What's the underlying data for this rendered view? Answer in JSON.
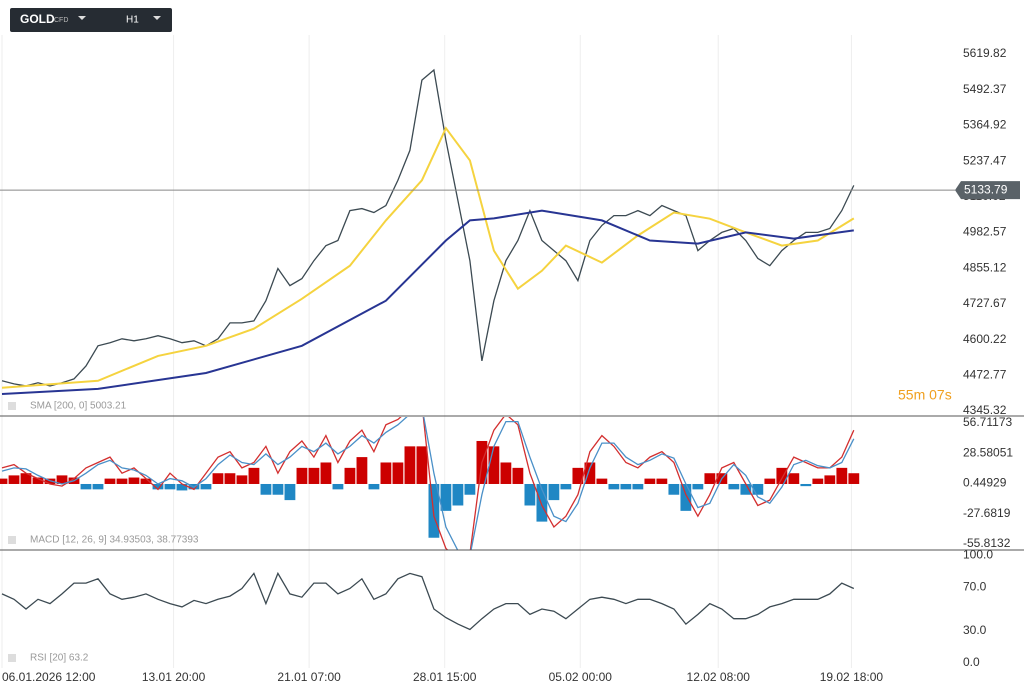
{
  "header": {
    "symbol": "GOLD",
    "instrument_type": "CFD",
    "timeframe": "H1"
  },
  "countdown": "55m 07s",
  "chart_data": [
    {
      "type": "line",
      "grid": true,
      "xlim": [
        0,
        78.6
      ],
      "ylim": [
        4327.4,
        5687.9
      ],
      "yticks": [
        5619.82,
        5492.37,
        5364.92,
        5237.47,
        5110.02,
        4982.57,
        4855.12,
        4727.67,
        4600.22,
        4472.77,
        4345.32
      ],
      "current_price": 5133.79,
      "series": [
        {
          "color": "#3c4a52",
          "x": [
            0,
            1,
            2,
            3,
            4,
            5,
            6,
            7,
            8,
            9,
            10,
            11,
            12,
            13,
            14,
            15,
            16,
            17,
            18,
            19,
            20,
            21,
            22,
            23,
            24,
            25,
            26,
            27,
            28,
            29,
            30,
            31,
            32,
            33,
            34,
            35,
            36,
            37,
            38,
            39,
            40,
            41,
            42,
            43,
            44,
            45,
            46,
            47,
            48,
            49,
            50,
            51,
            52,
            53,
            54,
            55,
            56,
            57,
            58,
            59,
            60,
            61,
            62,
            63,
            64,
            65,
            66,
            67,
            68,
            69,
            70,
            71
          ],
          "values": [
            4453,
            4442,
            4435,
            4446,
            4435,
            4446,
            4460,
            4506,
            4578,
            4589,
            4603,
            4596,
            4603,
            4614,
            4603,
            4589,
            4596,
            4578,
            4603,
            4660,
            4660,
            4667,
            4739,
            4854,
            4793,
            4818,
            4882,
            4936,
            4954,
            5061,
            5068,
            5054,
            5079,
            5169,
            5276,
            5527,
            5563,
            5312,
            5097,
            4882,
            4524,
            4739,
            4882,
            4954,
            5061,
            4954,
            4918,
            4882,
            4811,
            4954,
            5008,
            5043,
            5043,
            5061,
            5043,
            5079,
            5061,
            5043,
            4918,
            4954,
            4983,
            4997,
            4954,
            4890,
            4864,
            4918,
            4954,
            4983,
            4983,
            4997,
            5061,
            5151
          ]
        },
        {
          "color": "#f5d33f",
          "x": [
            0,
            8,
            13,
            17,
            21,
            25,
            29,
            32,
            35,
            37,
            39,
            41,
            43,
            45,
            47,
            50,
            53,
            56,
            59,
            62,
            65,
            68,
            71
          ],
          "values": [
            4428,
            4453,
            4542,
            4578,
            4639,
            4746,
            4864,
            5026,
            5169,
            5355,
            5240,
            4918,
            4782,
            4846,
            4936,
            4875,
            4972,
            5054,
            5032,
            4983,
            4936,
            4954,
            5033
          ]
        },
        {
          "name": "SMA [200, 0] 5003.21",
          "color": "#283593",
          "x": [
            0,
            8,
            17,
            25,
            32,
            37,
            39,
            41,
            45,
            50,
            54,
            58,
            62,
            66,
            71
          ],
          "values": [
            4406,
            4424,
            4481,
            4578,
            4739,
            4954,
            5026,
            5033,
            5061,
            5026,
            4954,
            4943,
            4983,
            4961,
            4990
          ]
        }
      ]
    },
    {
      "type": "combo",
      "title": "MACD [12, 26, 9] 34.93503, 38.77393",
      "grid": true,
      "xlim": [
        0,
        78.6
      ],
      "ylim": [
        -61.4,
        62.3
      ],
      "yticks": [
        56.71173,
        28.58051,
        0.44929,
        -27.6819,
        -55.8132
      ],
      "series": [
        {
          "style": "bar",
          "color": "#cc0000",
          "negative_color": "#1f87c4",
          "x": [
            0,
            1,
            2,
            3,
            4,
            5,
            6,
            7,
            8,
            9,
            10,
            11,
            12,
            13,
            14,
            15,
            16,
            17,
            18,
            19,
            20,
            21,
            22,
            23,
            24,
            25,
            26,
            27,
            28,
            29,
            30,
            31,
            32,
            33,
            34,
            35,
            36,
            37,
            38,
            39,
            40,
            41,
            42,
            43,
            44,
            45,
            46,
            47,
            48,
            49,
            50,
            51,
            52,
            53,
            54,
            55,
            56,
            57,
            58,
            59,
            60,
            61,
            62,
            63,
            64,
            65,
            66,
            67,
            68,
            69,
            70,
            71
          ],
          "values": [
            5,
            8,
            10,
            6,
            5,
            8,
            6,
            -5,
            -5,
            5,
            5,
            6,
            5,
            -5,
            -5,
            -6,
            -5,
            -5,
            10,
            10,
            8,
            15,
            -10,
            -10,
            -15,
            15,
            15,
            20,
            -5,
            15,
            25,
            -5,
            20,
            20,
            35,
            35,
            -50,
            -25,
            -20,
            -10,
            40,
            35,
            20,
            15,
            -20,
            -35,
            -15,
            -5,
            15,
            20,
            5,
            -5,
            -5,
            -5,
            5,
            5,
            -10,
            -25,
            -5,
            10,
            10,
            -5,
            -10,
            -10,
            5,
            15,
            10,
            -2,
            5,
            8,
            15,
            10
          ]
        },
        {
          "style": "line",
          "color": "#d32f2f",
          "x": [
            0,
            1,
            2,
            3,
            4,
            5,
            6,
            7,
            8,
            9,
            10,
            11,
            12,
            13,
            14,
            15,
            16,
            17,
            18,
            19,
            20,
            21,
            22,
            23,
            24,
            25,
            26,
            27,
            28,
            29,
            30,
            31,
            32,
            33,
            34,
            35,
            36,
            37,
            38,
            39,
            40,
            41,
            42,
            43,
            44,
            45,
            46,
            47,
            48,
            49,
            50,
            51,
            52,
            53,
            54,
            55,
            56,
            57,
            58,
            59,
            60,
            61,
            62,
            63,
            64,
            65,
            66,
            67,
            68,
            69,
            70,
            71
          ],
          "values": [
            15,
            18,
            10,
            5,
            0,
            -2,
            5,
            15,
            20,
            25,
            10,
            15,
            5,
            -5,
            10,
            0,
            -5,
            10,
            25,
            30,
            15,
            20,
            35,
            10,
            30,
            40,
            25,
            45,
            20,
            40,
            50,
            30,
            55,
            60,
            70,
            75,
            -30,
            -60,
            -70,
            -65,
            20,
            50,
            65,
            55,
            10,
            -20,
            -40,
            -30,
            -10,
            30,
            45,
            35,
            20,
            15,
            25,
            30,
            20,
            -10,
            -30,
            -10,
            15,
            20,
            0,
            -20,
            -15,
            5,
            25,
            20,
            15,
            15,
            25,
            50
          ]
        },
        {
          "style": "line",
          "color": "#4a90c8",
          "x": [
            0,
            1,
            2,
            3,
            4,
            5,
            6,
            7,
            8,
            9,
            10,
            11,
            12,
            13,
            14,
            15,
            16,
            17,
            18,
            19,
            20,
            21,
            22,
            23,
            24,
            25,
            26,
            27,
            28,
            29,
            30,
            31,
            32,
            33,
            34,
            35,
            36,
            37,
            38,
            39,
            40,
            41,
            42,
            43,
            44,
            45,
            46,
            47,
            48,
            49,
            50,
            51,
            52,
            53,
            54,
            55,
            56,
            57,
            58,
            59,
            60,
            61,
            62,
            63,
            64,
            65,
            66,
            67,
            68,
            69,
            70,
            71
          ],
          "values": [
            12,
            15,
            14,
            8,
            3,
            0,
            3,
            10,
            18,
            22,
            15,
            13,
            8,
            0,
            5,
            3,
            -3,
            5,
            18,
            27,
            20,
            18,
            28,
            18,
            25,
            35,
            30,
            38,
            28,
            35,
            45,
            38,
            48,
            55,
            65,
            72,
            10,
            -40,
            -62,
            -67,
            -10,
            35,
            58,
            58,
            25,
            -5,
            -30,
            -35,
            -18,
            15,
            38,
            38,
            25,
            18,
            22,
            28,
            24,
            0,
            -22,
            -18,
            5,
            18,
            8,
            -12,
            -18,
            -3,
            18,
            22,
            17,
            15,
            20,
            42
          ]
        }
      ]
    },
    {
      "type": "line",
      "title": "RSI [20] 63.2",
      "grid": true,
      "xlim": [
        0,
        78.6
      ],
      "ylim": [
        -4.7,
        103.8
      ],
      "yticks": [
        {
          "value": 100,
          "label": "100.0"
        },
        {
          "value": 70,
          "label": "70.0"
        },
        {
          "value": 30,
          "label": "30.0"
        },
        {
          "value": 0,
          "label": "0.0"
        }
      ],
      "xticks": [
        {
          "value": 0,
          "label": "06.01.2026  12:00"
        },
        {
          "value": 14.3,
          "label": "13.01  20:00"
        },
        {
          "value": 25.6,
          "label": "21.01  07:00"
        },
        {
          "value": 36.9,
          "label": "28.01  15:00"
        },
        {
          "value": 48.2,
          "label": "05.02  00:00"
        },
        {
          "value": 59.7,
          "label": "12.02  08:00"
        },
        {
          "value": 70.8,
          "label": "19.02  18:00"
        }
      ],
      "series": [
        {
          "color": "#3c4a52",
          "x": [
            0,
            1,
            2,
            3,
            4,
            5,
            6,
            7,
            8,
            9,
            10,
            11,
            12,
            13,
            14,
            15,
            16,
            17,
            18,
            19,
            20,
            21,
            22,
            23,
            24,
            25,
            26,
            27,
            28,
            29,
            30,
            31,
            32,
            33,
            34,
            35,
            36,
            37,
            38,
            39,
            40,
            41,
            42,
            43,
            44,
            45,
            46,
            47,
            48,
            49,
            50,
            51,
            52,
            53,
            54,
            55,
            56,
            57,
            58,
            59,
            60,
            61,
            62,
            63,
            64,
            65,
            66,
            67,
            68,
            69,
            70,
            71
          ],
          "values": [
            64,
            59,
            50,
            59,
            55,
            64,
            74,
            74,
            78,
            64,
            59,
            61,
            64,
            59,
            55,
            52,
            58,
            55,
            59,
            62,
            69,
            83,
            55,
            83,
            64,
            61,
            74,
            74,
            64,
            69,
            78,
            59,
            64,
            78,
            83,
            80,
            50,
            42,
            36,
            31,
            41,
            50,
            55,
            55,
            45,
            50,
            48,
            41,
            50,
            59,
            61,
            59,
            55,
            59,
            59,
            55,
            50,
            36,
            45,
            55,
            50,
            41,
            41,
            45,
            52,
            55,
            59,
            59,
            59,
            64,
            74,
            69
          ]
        }
      ]
    }
  ]
}
